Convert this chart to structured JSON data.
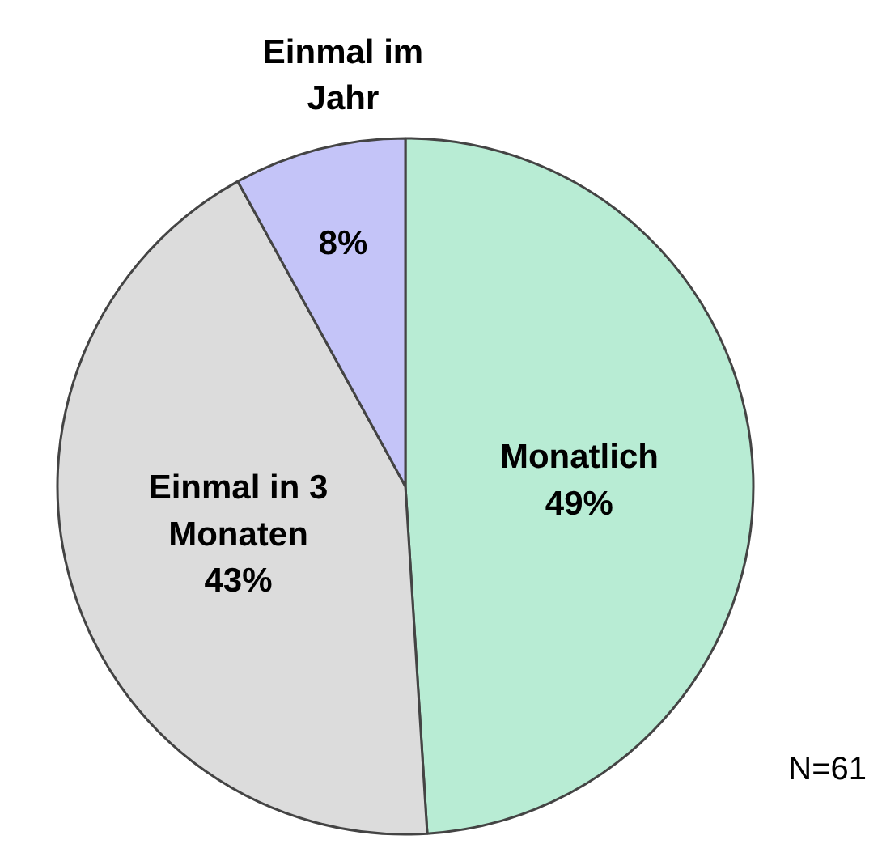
{
  "chart_data": {
    "type": "pie",
    "categories": [
      "Monatlich",
      "Einmal in 3 Monaten",
      "Einmal im Jahr"
    ],
    "values": [
      49,
      43,
      8
    ],
    "value_labels": [
      "49%",
      "43%",
      "8%"
    ],
    "colors": [
      "#b8ecd4",
      "#dcdcdc",
      "#c4c4f8"
    ],
    "annotations": [
      "N=61"
    ]
  }
}
